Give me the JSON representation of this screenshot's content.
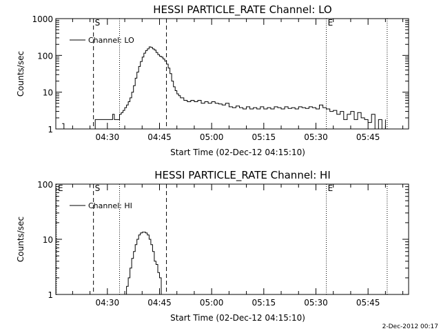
{
  "chart_data": [
    {
      "type": "line",
      "title": "HESSI PARTICLE_RATE Channel: LO",
      "xlabel": "Start Time (02-Dec-12 04:15:10)",
      "ylabel": "Counts/sec",
      "y_scale": "log",
      "ylim": [
        1,
        1000
      ],
      "y_ticks": [
        "1",
        "10",
        "100",
        "1000"
      ],
      "xlim": [
        "04:15:10",
        "05:56:40"
      ],
      "x_ticks": [
        "04:30",
        "04:45",
        "05:00",
        "05:15",
        "05:30",
        "05:45"
      ],
      "legend": "top-left",
      "grid": false,
      "markers": [
        {
          "label": "S",
          "time": "04:26:00",
          "style": "dashed"
        },
        {
          "label": "",
          "time": "04:33:30",
          "style": "dotted"
        },
        {
          "label": "",
          "time": "04:47:00",
          "style": "dashed"
        },
        {
          "label": "E",
          "time": "05:33:00",
          "style": "dotted"
        },
        {
          "label": "",
          "time": "05:50:30",
          "style": "dotted"
        }
      ],
      "series": [
        {
          "name": "Channel: LO",
          "x": [
            "04:17:00",
            "04:17:30",
            "04:26:00",
            "04:26:30",
            "04:29:00",
            "04:30:00",
            "04:31:30",
            "04:32:00",
            "04:33:00",
            "04:33:30",
            "04:34:00",
            "04:34:30",
            "04:35:00",
            "04:35:30",
            "04:36:00",
            "04:36:30",
            "04:37:00",
            "04:37:30",
            "04:38:00",
            "04:38:30",
            "04:39:00",
            "04:39:30",
            "04:40:00",
            "04:40:30",
            "04:41:00",
            "04:41:30",
            "04:42:00",
            "04:42:30",
            "04:43:00",
            "04:43:30",
            "04:44:00",
            "04:44:30",
            "04:45:00",
            "04:45:30",
            "04:46:00",
            "04:46:30",
            "04:47:00",
            "04:47:30",
            "04:48:00",
            "04:48:30",
            "04:49:00",
            "04:49:30",
            "04:50:00",
            "04:50:30",
            "04:51:00",
            "04:52:00",
            "04:53:00",
            "04:54:00",
            "04:55:00",
            "04:56:00",
            "04:57:00",
            "04:58:00",
            "04:59:00",
            "05:00:00",
            "05:01:00",
            "05:02:00",
            "05:03:00",
            "05:04:00",
            "05:05:00",
            "05:06:00",
            "05:07:00",
            "05:08:00",
            "05:09:00",
            "05:10:00",
            "05:11:00",
            "05:12:00",
            "05:13:00",
            "05:14:00",
            "05:15:00",
            "05:16:00",
            "05:17:00",
            "05:18:00",
            "05:19:00",
            "05:20:00",
            "05:21:00",
            "05:22:00",
            "05:23:00",
            "05:24:00",
            "05:25:00",
            "05:26:00",
            "05:27:00",
            "05:28:00",
            "05:29:00",
            "05:30:00",
            "05:31:00",
            "05:32:00",
            "05:33:00",
            "05:34:00",
            "05:35:00",
            "05:36:00",
            "05:37:00",
            "05:38:00",
            "05:39:00",
            "05:40:00",
            "05:41:00",
            "05:42:00",
            "05:43:00",
            "05:44:00",
            "05:45:00",
            "05:46:00",
            "05:47:00",
            "05:48:00",
            "05:49:00",
            "05:50:00"
          ],
          "values": [
            1.4,
            1,
            1,
            1.8,
            1.8,
            1.8,
            2.5,
            1.8,
            1.8,
            2.5,
            2.8,
            3.2,
            3.8,
            4.5,
            5.5,
            7,
            10,
            15,
            24,
            35,
            50,
            68,
            90,
            115,
            135,
            150,
            170,
            165,
            150,
            140,
            120,
            105,
            95,
            90,
            80,
            70,
            58,
            45,
            32,
            20,
            14,
            11,
            9,
            8,
            7,
            6,
            5.5,
            6,
            5.5,
            6,
            5,
            5.5,
            5,
            5.5,
            5,
            4.8,
            4.5,
            5,
            4,
            3.8,
            4.2,
            3.8,
            3.5,
            4,
            3.5,
            3.8,
            3.5,
            4,
            3.5,
            3.8,
            3.5,
            4,
            3.8,
            3.5,
            4,
            3.6,
            3.8,
            3.5,
            4,
            3.8,
            3.6,
            4,
            3.8,
            3.5,
            4.5,
            3.8,
            3.5,
            3,
            3.2,
            2.5,
            3,
            1.8,
            2.5,
            3,
            1.8,
            2.8,
            2,
            1.8,
            1.5,
            2.5,
            1,
            1.8,
            1,
            1.8
          ]
        }
      ]
    },
    {
      "type": "line",
      "title": "HESSI PARTICLE_RATE Channel: HI",
      "xlabel": "Start Time (02-Dec-12 04:15:10)",
      "ylabel": "Counts/sec",
      "y_scale": "log",
      "ylim": [
        1,
        100
      ],
      "y_ticks": [
        "1",
        "10",
        "100"
      ],
      "xlim": [
        "04:15:10",
        "05:56:40"
      ],
      "x_ticks": [
        "04:30",
        "04:45",
        "05:00",
        "05:15",
        "05:30",
        "05:45"
      ],
      "legend": "top-left",
      "grid": false,
      "markers": [
        {
          "label": "E",
          "time": "04:15:10",
          "style": "dotted"
        },
        {
          "label": "S",
          "time": "04:26:00",
          "style": "dashed"
        },
        {
          "label": "",
          "time": "04:33:30",
          "style": "dotted"
        },
        {
          "label": "",
          "time": "04:47:00",
          "style": "dashed"
        },
        {
          "label": "E",
          "time": "05:33:00",
          "style": "dotted"
        },
        {
          "label": "",
          "time": "05:50:30",
          "style": "dotted"
        }
      ],
      "series": [
        {
          "name": "Channel: HI",
          "x": [
            "04:35:00",
            "04:35:30",
            "04:36:00",
            "04:36:30",
            "04:37:00",
            "04:37:30",
            "04:38:00",
            "04:38:30",
            "04:39:00",
            "04:39:30",
            "04:40:00",
            "04:40:30",
            "04:41:00",
            "04:41:30",
            "04:42:00",
            "04:42:30",
            "04:43:00",
            "04:43:30",
            "04:44:00",
            "04:44:30",
            "04:45:00",
            "04:45:30"
          ],
          "values": [
            1,
            1.4,
            2,
            3,
            4.5,
            6,
            8,
            10,
            12,
            13,
            13.5,
            13.5,
            13,
            12,
            10,
            8,
            6,
            4,
            3.5,
            2.5,
            2,
            1
          ]
        }
      ]
    }
  ],
  "stamp": "2-Dec-2012 00:17"
}
